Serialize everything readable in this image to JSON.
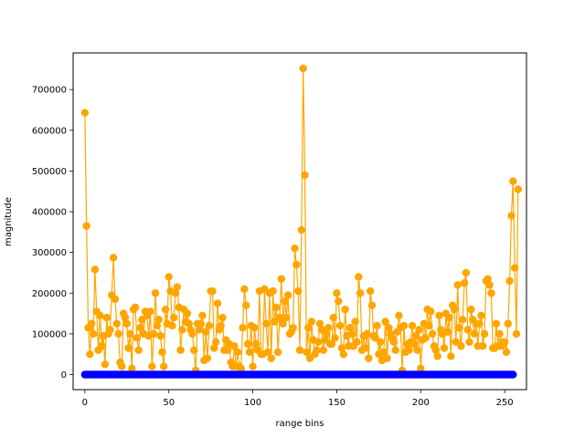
{
  "chart_data": {
    "type": "line",
    "title": "",
    "xlabel": "range bins",
    "ylabel": "magnitude",
    "xlim": [
      -7,
      263
    ],
    "ylim": [
      -37000,
      790000
    ],
    "x_ticks": [
      0,
      50,
      100,
      150,
      200,
      250
    ],
    "x_tick_labels": [
      "0",
      "50",
      "100",
      "150",
      "200",
      "250"
    ],
    "y_ticks": [
      0,
      100000,
      200000,
      300000,
      400000,
      500000,
      600000,
      700000
    ],
    "y_tick_labels": [
      "0",
      "100000",
      "200000",
      "300000",
      "400000",
      "500000",
      "600000",
      "700000"
    ],
    "grid": false,
    "series": [
      {
        "color": "#ffa500",
        "marker": "circle",
        "x_start": 0,
        "x_step": 1,
        "values": [
          643000,
          365000,
          115000,
          50000,
          125000,
          100000,
          258000,
          155000,
          60000,
          145000,
          70000,
          95000,
          25000,
          140000,
          100000,
          110000,
          195000,
          287000,
          185000,
          125000,
          100000,
          30000,
          20000,
          150000,
          140000,
          125000,
          65000,
          100000,
          15000,
          160000,
          165000,
          90000,
          60000,
          115000,
          135000,
          100000,
          155000,
          145000,
          95000,
          155000,
          20000,
          100000,
          200000,
          120000,
          135000,
          95000,
          55000,
          20000,
          160000,
          125000,
          240000,
          205000,
          120000,
          140000,
          200000,
          215000,
          165000,
          60000,
          110000,
          160000,
          130000,
          150000,
          125000,
          110000,
          100000,
          60000,
          10000,
          125000,
          110000,
          125000,
          145000,
          35000,
          105000,
          40000,
          120000,
          205000,
          205000,
          65000,
          80000,
          175000,
          110000,
          120000,
          140000,
          60000,
          85000,
          60000,
          75000,
          30000,
          20000,
          70000,
          20000,
          55000,
          20000,
          15000,
          115000,
          210000,
          170000,
          75000,
          55000,
          120000,
          20000,
          115000,
          75000,
          60000,
          205000,
          50000,
          50000,
          210000,
          125000,
          55000,
          200000,
          40000,
          205000,
          130000,
          165000,
          55000,
          140000,
          235000,
          125000,
          180000,
          140000,
          195000,
          100000,
          105000,
          115000,
          310000,
          270000,
          205000,
          60000,
          355000,
          752000,
          490000,
          55000,
          115000,
          40000,
          130000,
          85000,
          50000,
          60000,
          80000,
          125000,
          110000,
          60000,
          85000,
          100000,
          115000,
          75000,
          75000,
          140000,
          90000,
          200000,
          180000,
          120000,
          65000,
          50000,
          160000,
          95000,
          70000,
          115000,
          100000,
          70000,
          130000,
          80000,
          240000,
          200000,
          60000,
          95000,
          65000,
          100000,
          40000,
          205000,
          170000,
          95000,
          90000,
          120000,
          50000,
          80000,
          35000,
          55000,
          130000,
          40000,
          115000,
          100000,
          90000,
          80000,
          60000,
          105000,
          145000,
          115000,
          10000,
          120000,
          55000,
          75000,
          60000,
          80000,
          120000,
          75000,
          95000,
          60000,
          110000,
          15000,
          85000,
          125000,
          90000,
          160000,
          120000,
          155000,
          100000,
          70000,
          60000,
          45000,
          145000,
          110000,
          100000,
          65000,
          150000,
          105000,
          140000,
          45000,
          170000,
          160000,
          80000,
          220000,
          115000,
          70000,
          135000,
          225000,
          250000,
          110000,
          80000,
          160000,
          135000,
          100000,
          125000,
          70000,
          125000,
          145000,
          70000,
          100000,
          230000,
          235000,
          220000,
          200000,
          65000,
          65000,
          125000,
          70000,
          100000,
          70000,
          80000,
          80000,
          55000,
          125000,
          230000,
          390000,
          475000,
          262000,
          100000,
          455000
        ]
      },
      {
        "color": "#0000ff",
        "marker": "circle",
        "x_start": 0,
        "x_step": 1,
        "count": 256,
        "values_note": "",
        "values": []
      }
    ]
  }
}
